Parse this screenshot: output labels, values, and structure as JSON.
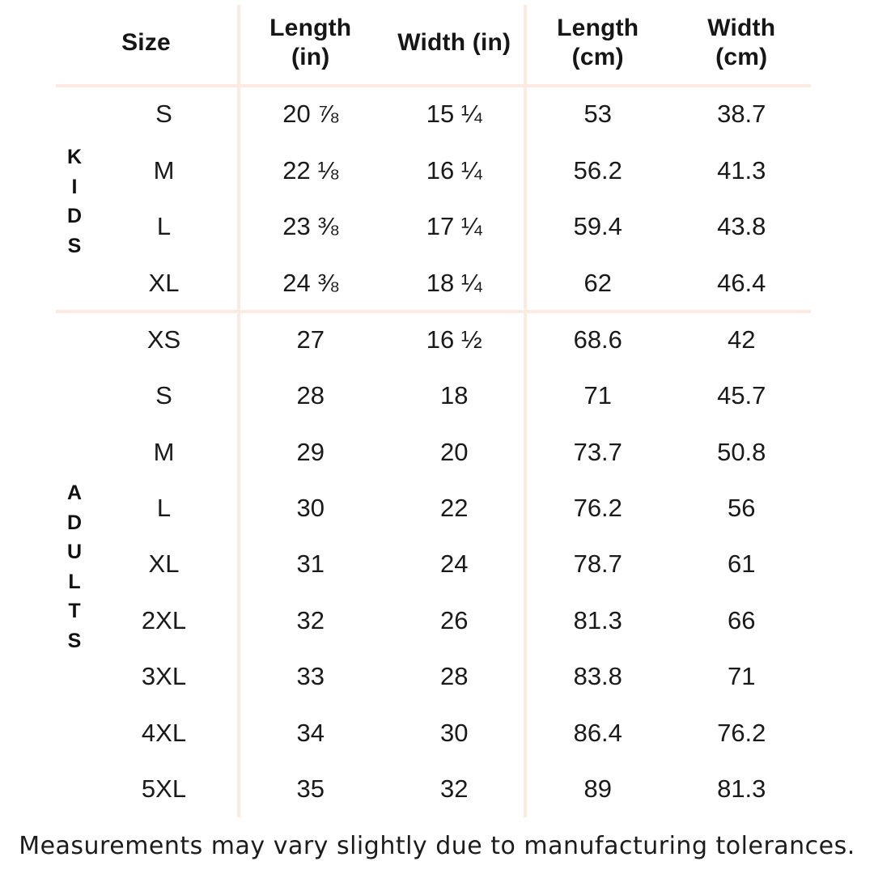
{
  "colors": {
    "background": "#ffffff",
    "divider": "#fbeae1",
    "text": "#161616"
  },
  "chart_data": {
    "type": "table",
    "columns": [
      "Size",
      "Length (in)",
      "Width (in)",
      "Length (cm)",
      "Width (cm)"
    ],
    "sections": [
      {
        "label": "KIDS",
        "rows": [
          [
            "S",
            "20 ⅞",
            "15 ¼",
            "53",
            "38.7"
          ],
          [
            "M",
            "22 ⅛",
            "16 ¼",
            "56.2",
            "41.3"
          ],
          [
            "L",
            "23 ⅜",
            "17 ¼",
            "59.4",
            "43.8"
          ],
          [
            "XL",
            "24 ⅜",
            "18 ¼",
            "62",
            "46.4"
          ]
        ]
      },
      {
        "label": "ADULTS",
        "rows": [
          [
            "XS",
            "27",
            "16 ½",
            "68.6",
            "42"
          ],
          [
            "S",
            "28",
            "18",
            "71",
            "45.7"
          ],
          [
            "M",
            "29",
            "20",
            "73.7",
            "50.8"
          ],
          [
            "L",
            "30",
            "22",
            "76.2",
            "56"
          ],
          [
            "XL",
            "31",
            "24",
            "78.7",
            "61"
          ],
          [
            "2XL",
            "32",
            "26",
            "81.3",
            "66"
          ],
          [
            "3XL",
            "33",
            "28",
            "83.8",
            "71"
          ],
          [
            "4XL",
            "34",
            "30",
            "86.4",
            "76.2"
          ],
          [
            "5XL",
            "35",
            "32",
            "89",
            "81.3"
          ]
        ]
      }
    ],
    "footnote": "Measurements may vary slightly due to manufacturing tolerances."
  }
}
